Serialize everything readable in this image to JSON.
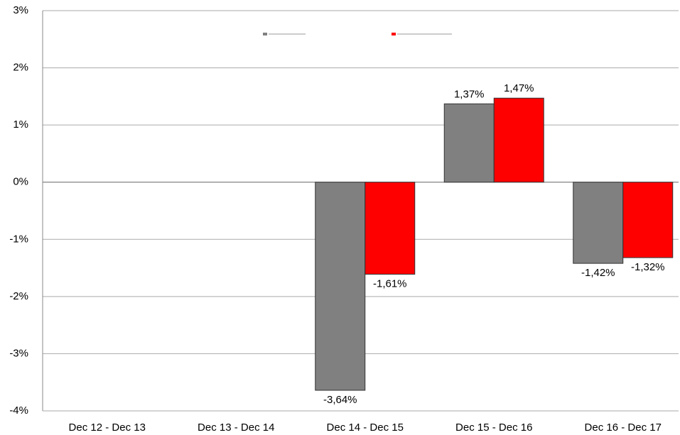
{
  "chart_data": {
    "type": "bar",
    "categories": [
      "Dec 12 - Dec 13",
      "Dec 13 - Dec 14",
      "Dec 14 - Dec 15",
      "Dec 15 - Dec 16",
      "Dec 16 - Dec 17"
    ],
    "series": [
      {
        "color": "#808080",
        "values": [
          null,
          null,
          -3.64,
          1.37,
          -1.42
        ],
        "value_labels": [
          null,
          null,
          "-3,64%",
          "1,37%",
          "-1,42%"
        ]
      },
      {
        "color": "#ff0000",
        "values": [
          null,
          null,
          -1.61,
          1.47,
          -1.32
        ],
        "value_labels": [
          null,
          null,
          "-1,61%",
          "1,47%",
          "-1,32%"
        ]
      }
    ],
    "ylim": [
      -4,
      3
    ],
    "yticks": [
      {
        "value": -4,
        "label": "-4%"
      },
      {
        "value": -3,
        "label": "-3%"
      },
      {
        "value": -2,
        "label": "-2%"
      },
      {
        "value": -1,
        "label": "-1%"
      },
      {
        "value": 0,
        "label": "0%"
      },
      {
        "value": 1,
        "label": "1%"
      },
      {
        "value": 2,
        "label": "2%"
      },
      {
        "value": 3,
        "label": "3%"
      }
    ],
    "grid": true
  }
}
